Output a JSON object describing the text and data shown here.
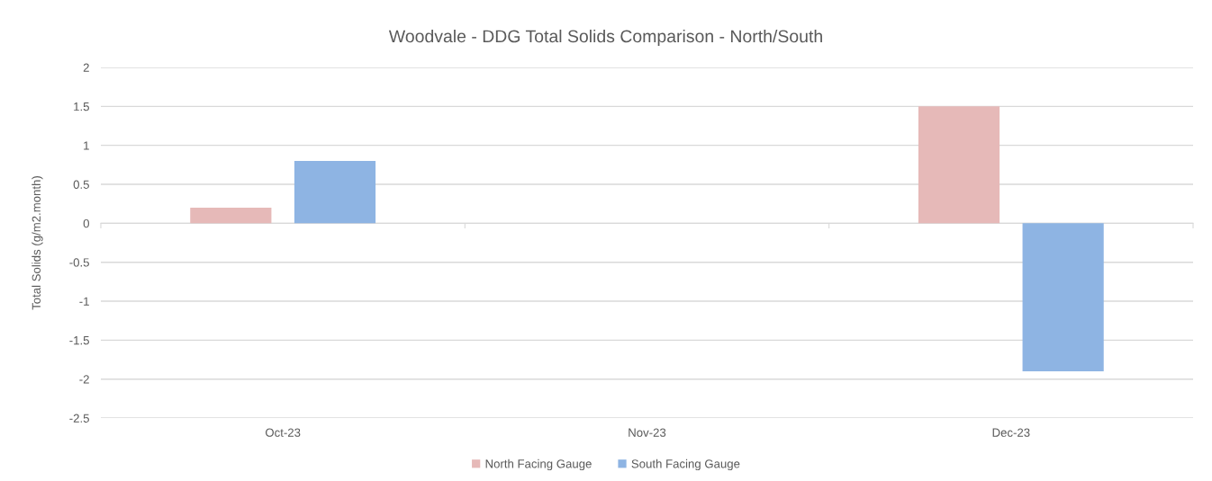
{
  "chart_data": {
    "type": "bar",
    "title": "Woodvale - DDG Total Solids Comparison - North/South",
    "ylabel": "Total Solids (g/m2.month)",
    "categories": [
      "Oct-23",
      "Nov-23",
      "Dec-23"
    ],
    "series": [
      {
        "name": "North Facing Gauge",
        "color": "#e6b9b8",
        "values": [
          0.2,
          null,
          1.5
        ]
      },
      {
        "name": "South Facing Gauge",
        "color": "#8eb4e3",
        "values": [
          0.8,
          null,
          -1.9
        ]
      }
    ],
    "ylim": [
      -2.5,
      2
    ],
    "yticks": [
      -2.5,
      -2,
      -1.5,
      -1,
      -0.5,
      0,
      0.5,
      1,
      1.5,
      2
    ],
    "grid": "y",
    "legend": "bottom"
  }
}
